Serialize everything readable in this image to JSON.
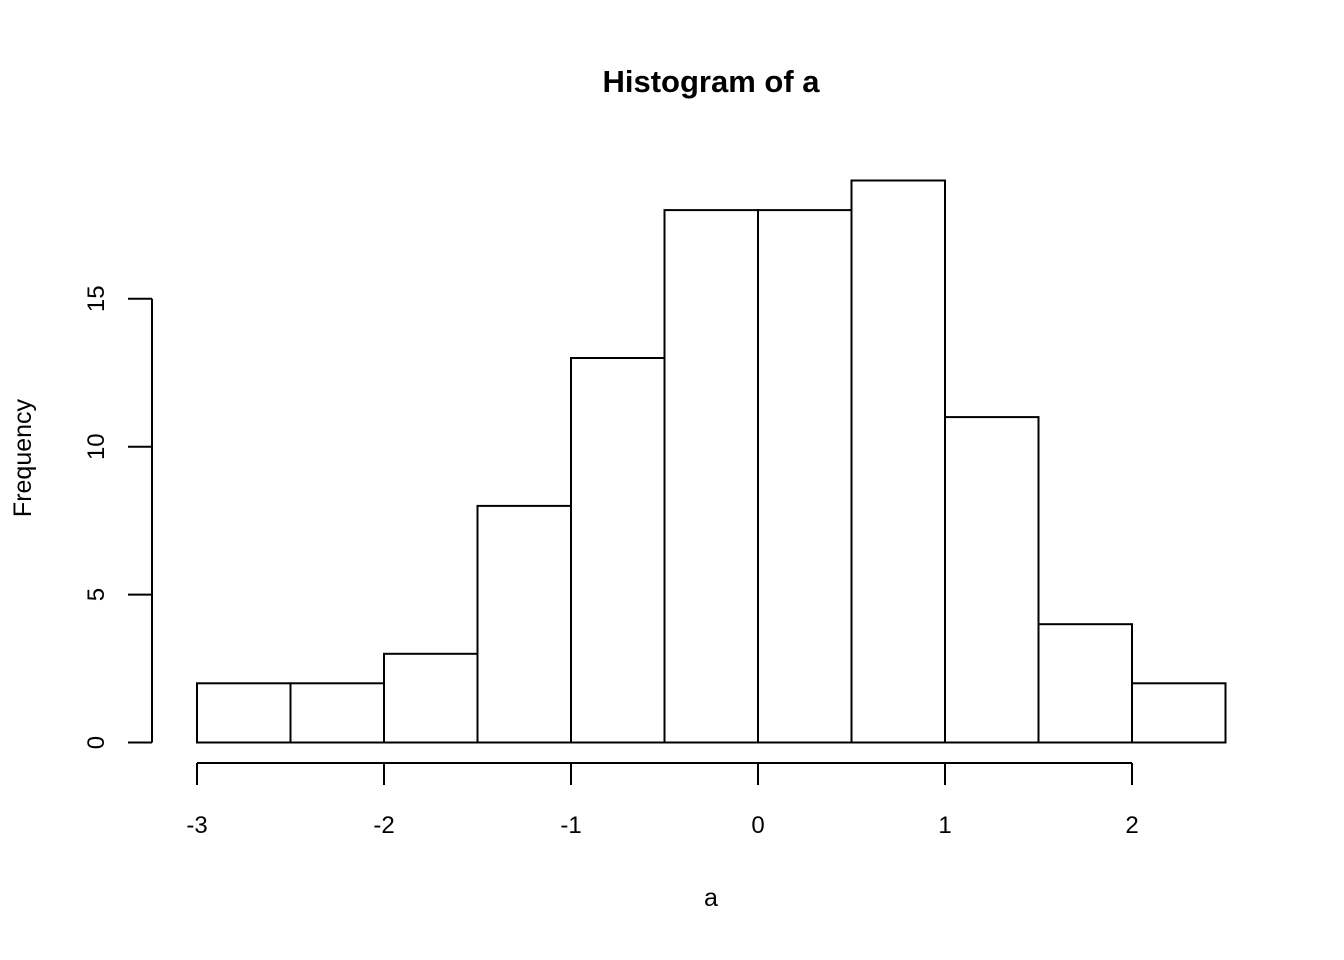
{
  "chart_data": {
    "type": "bar",
    "subtype": "histogram",
    "title": "Histogram of a",
    "xlabel": "a",
    "ylabel": "Frequency",
    "bin_breaks": [
      -3,
      -2.5,
      -2,
      -1.5,
      -1,
      -0.5,
      0,
      0.5,
      1,
      1.5,
      2,
      2.5
    ],
    "counts": [
      2,
      2,
      3,
      8,
      13,
      18,
      18,
      19,
      11,
      4,
      2
    ],
    "x_tick_values": [
      -3,
      -2,
      -1,
      0,
      1,
      2
    ],
    "x_tick_labels": [
      "-3",
      "-2",
      "-1",
      "0",
      "1",
      "2"
    ],
    "y_tick_values": [
      0,
      5,
      10,
      15
    ],
    "y_tick_labels": [
      "0",
      "5",
      "10",
      "15"
    ],
    "xlim": [
      -3,
      2.5
    ],
    "ylim": [
      0,
      19
    ],
    "grid": false,
    "legend": false,
    "bar_fill": "#ffffff",
    "line_color": "#000000",
    "background": "#ffffff"
  }
}
